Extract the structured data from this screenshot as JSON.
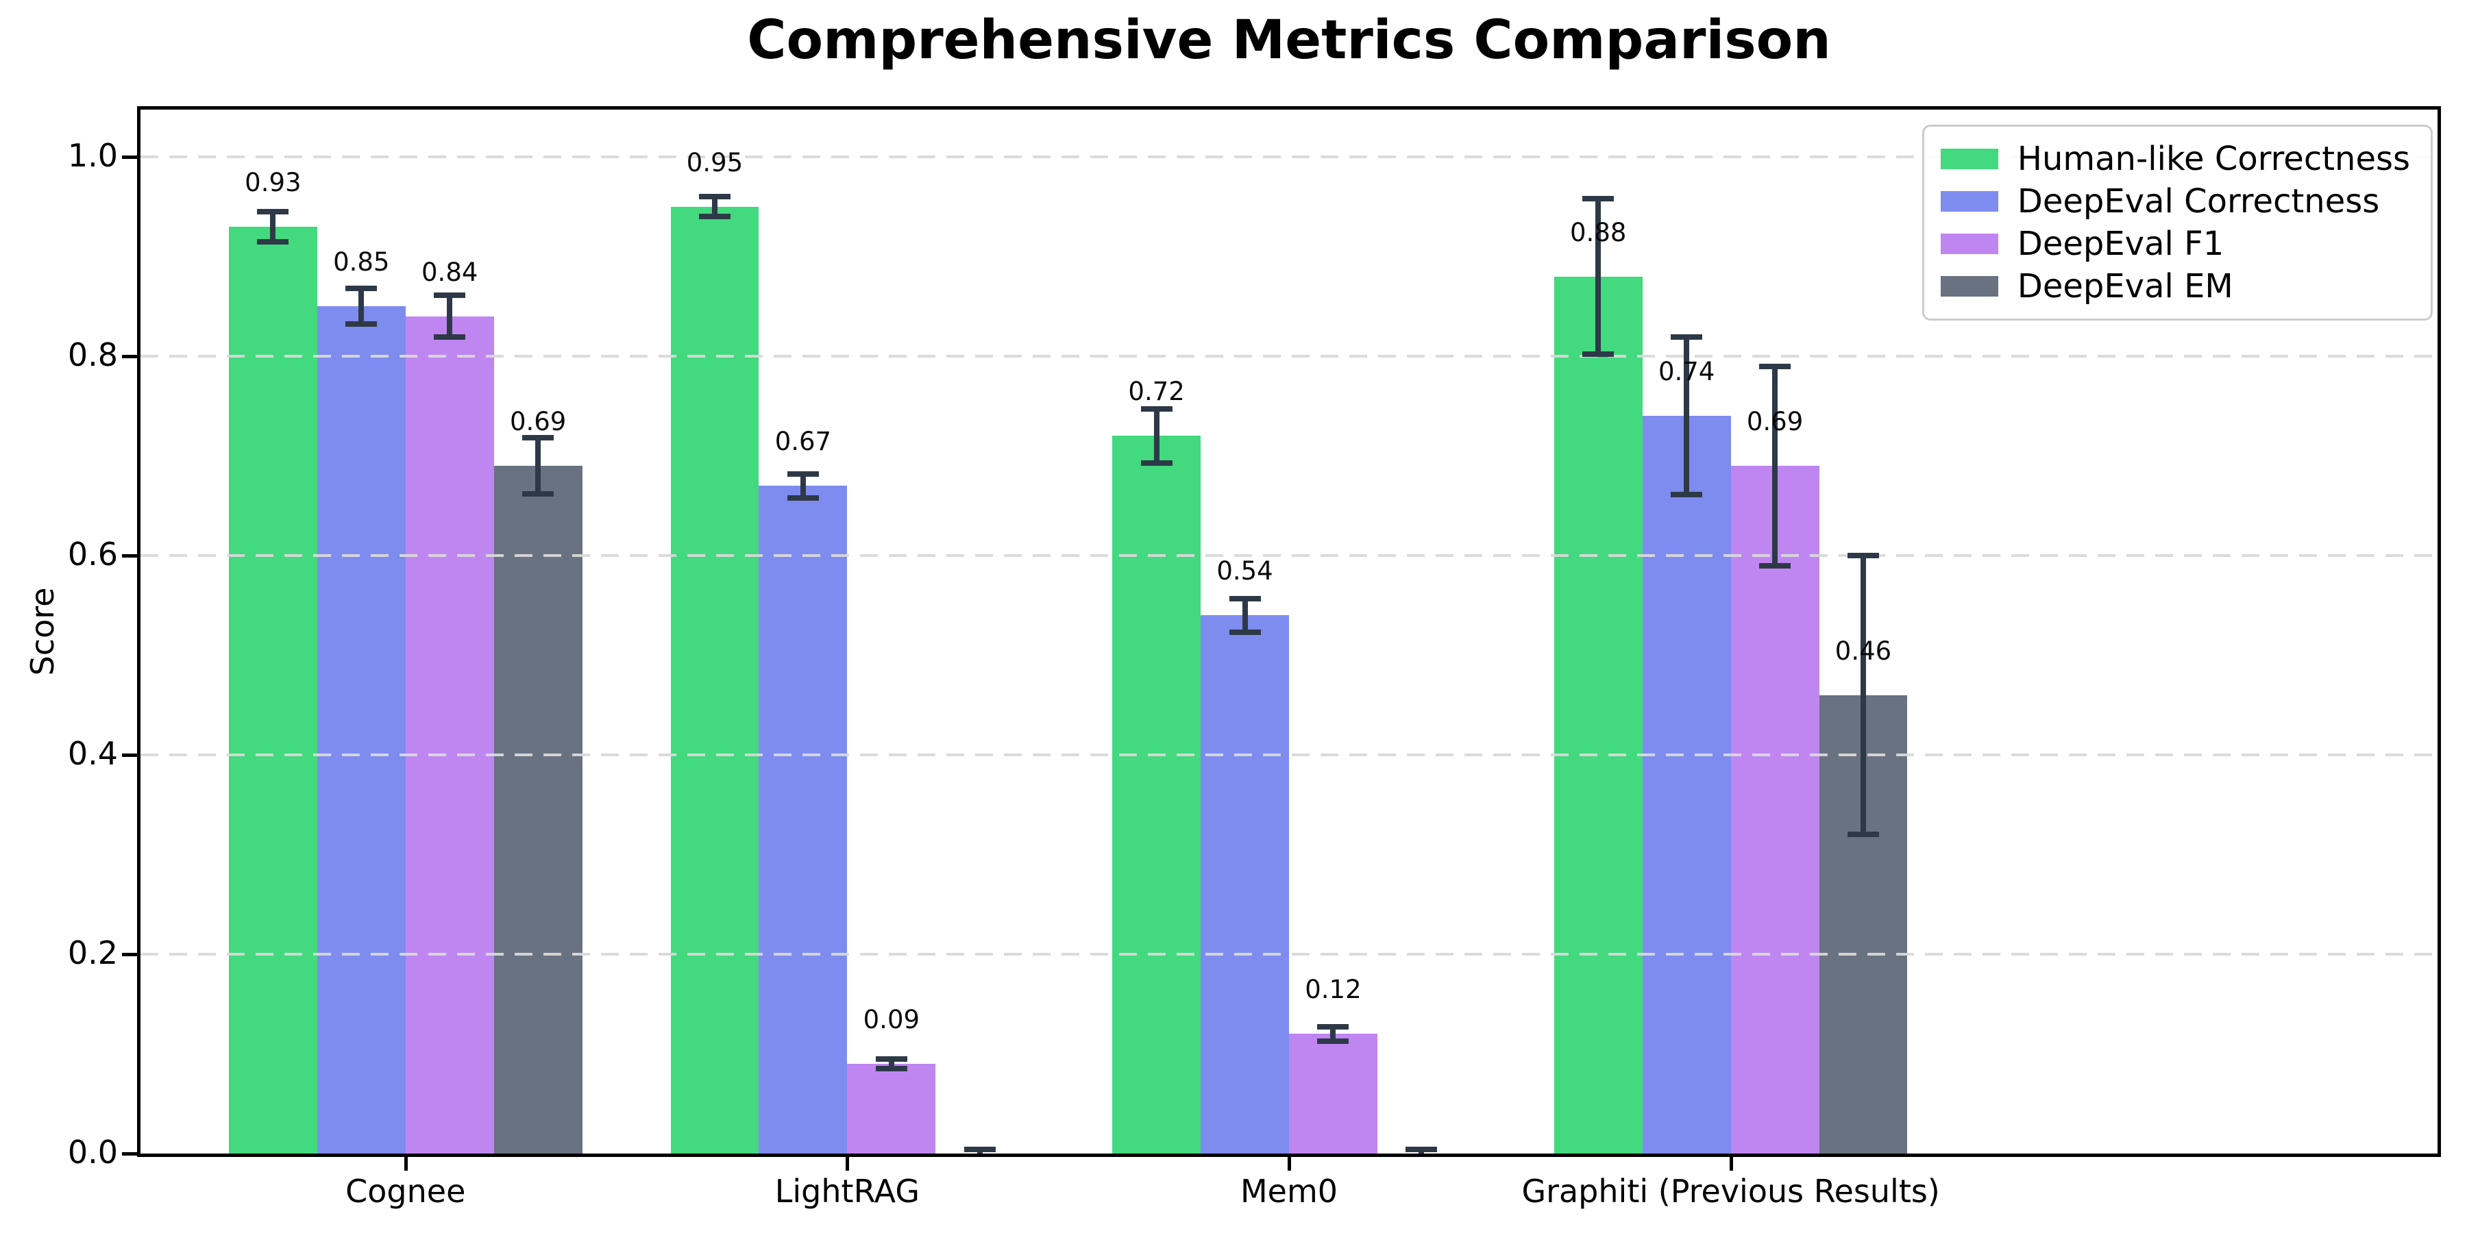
{
  "title": "Comprehensive Metrics Comparison",
  "ylabel": "Score",
  "chart_data": {
    "type": "bar",
    "title": "Comprehensive Metrics Comparison",
    "xlabel": "",
    "ylabel": "Score",
    "categories": [
      "Cognee",
      "LightRAG",
      "Mem0",
      "Graphiti (Previous Results)"
    ],
    "series": [
      {
        "name": "Human-like Correctness",
        "color": "#43d97e",
        "values": [
          0.93,
          0.95,
          0.72,
          0.88
        ],
        "errors": [
          0.015,
          0.01,
          0.027,
          0.078
        ],
        "labels": [
          "0.93",
          "0.95",
          "0.72",
          "0.88"
        ]
      },
      {
        "name": "DeepEval Correctness",
        "color": "#7e8cef",
        "values": [
          0.85,
          0.67,
          0.54,
          0.74
        ],
        "errors": [
          0.018,
          0.012,
          0.017,
          0.079
        ],
        "labels": [
          "0.85",
          "0.67",
          "0.54",
          "0.74"
        ]
      },
      {
        "name": "DeepEval F1",
        "color": "#bf86f2",
        "values": [
          0.84,
          0.09,
          0.12,
          0.69
        ],
        "errors": [
          0.021,
          0.005,
          0.007,
          0.1
        ],
        "labels": [
          "0.84",
          "0.09",
          "0.12",
          "0.69"
        ]
      },
      {
        "name": "DeepEval EM",
        "color": "#697280",
        "values": [
          0.69,
          0.0,
          0.0,
          0.46
        ],
        "errors": [
          0.028,
          0.004,
          0.004,
          0.14
        ],
        "labels": [
          "0.69",
          null,
          null,
          "0.46"
        ]
      }
    ],
    "bar_width": 0.2,
    "group_offsets": [
      -0.3,
      -0.1,
      0.1,
      0.3
    ],
    "ylim": [
      0,
      1.05
    ],
    "yticks": [
      0.0,
      0.2,
      0.4,
      0.6,
      0.8,
      1.0
    ],
    "ytick_labels": [
      "0.0",
      "0.2",
      "0.4",
      "0.6",
      "0.8",
      "1.0"
    ],
    "grid": {
      "axis": "y",
      "style": "dashed",
      "color": "#d7d7d7",
      "on_top_of_bars": true
    },
    "error_bar_color": "#2e3947",
    "axis_color": "#000000",
    "legend_position": "upper right"
  }
}
